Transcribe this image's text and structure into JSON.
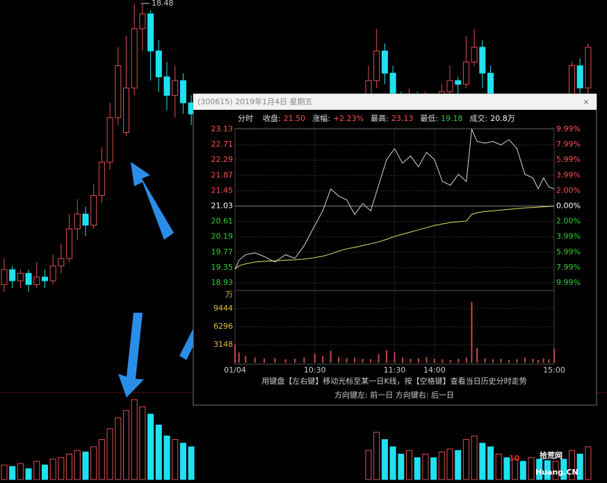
{
  "background_chart": {
    "peak_label": "18.48",
    "candles_left": [
      [
        10.9,
        11.3,
        11.6,
        10.7
      ],
      [
        11.3,
        11.0,
        11.4,
        10.8
      ],
      [
        11.0,
        11.2,
        11.3,
        10.8
      ],
      [
        11.2,
        10.9,
        11.3,
        10.7
      ],
      [
        10.9,
        11.1,
        11.5,
        10.8
      ],
      [
        11.1,
        11.0,
        11.3,
        10.8
      ],
      [
        11.0,
        11.4,
        11.7,
        10.9
      ],
      [
        11.4,
        11.6,
        12.0,
        11.2
      ],
      [
        11.6,
        12.4,
        12.8,
        11.5
      ],
      [
        12.4,
        12.8,
        13.2,
        12.1
      ],
      [
        12.8,
        12.5,
        13.0,
        12.2
      ],
      [
        12.5,
        13.3,
        13.6,
        12.4
      ],
      [
        13.3,
        14.2,
        14.6,
        13.1
      ],
      [
        14.2,
        15.4,
        15.8,
        14.0
      ],
      [
        15.4,
        16.8,
        17.3,
        15.2
      ],
      [
        15.0,
        16.2,
        17.6,
        14.9
      ],
      [
        16.2,
        17.8,
        18.48,
        16.0
      ],
      [
        17.8,
        18.2,
        18.48,
        17.2
      ],
      [
        18.2,
        17.2,
        18.3,
        16.4
      ],
      [
        17.2,
        16.5,
        17.5,
        16.1
      ],
      [
        16.5,
        16.0,
        16.9,
        15.6
      ],
      [
        16.0,
        16.4,
        16.8,
        15.4
      ],
      [
        16.4,
        15.8,
        16.6,
        15.5
      ],
      [
        15.8,
        15.5,
        16.0,
        15.2
      ]
    ],
    "candles_right": [
      [
        15.8,
        16.4,
        16.8,
        15.6
      ],
      [
        16.4,
        17.2,
        17.8,
        16.2
      ],
      [
        17.2,
        16.6,
        17.4,
        16.3
      ],
      [
        16.6,
        15.9,
        16.8,
        15.7
      ],
      [
        15.9,
        15.8,
        16.1,
        15.6
      ],
      [
        15.8,
        16.0,
        16.2,
        15.6
      ],
      [
        16.0,
        15.7,
        16.1,
        15.5
      ],
      [
        15.7,
        15.9,
        16.1,
        15.6
      ],
      [
        15.9,
        15.8,
        16.0,
        15.6
      ],
      [
        15.8,
        16.1,
        16.3,
        15.7
      ],
      [
        16.1,
        16.4,
        16.8,
        15.9
      ],
      [
        16.4,
        16.3,
        16.5,
        16.0
      ],
      [
        16.3,
        16.9,
        17.6,
        16.2
      ],
      [
        16.9,
        17.3,
        17.8,
        16.8
      ],
      [
        17.3,
        16.6,
        17.5,
        16.2
      ],
      [
        16.6,
        15.7,
        16.8,
        15.5
      ],
      [
        15.7,
        15.8,
        16.0,
        15.5
      ],
      [
        15.8,
        15.6,
        15.9,
        15.4
      ],
      [
        15.6,
        15.7,
        15.9,
        15.5
      ],
      [
        15.7,
        15.6,
        15.8,
        15.4
      ],
      [
        15.6,
        15.8,
        16.0,
        15.5
      ],
      [
        15.8,
        15.7,
        15.9,
        15.6
      ],
      [
        15.7,
        15.6,
        15.8,
        15.5
      ],
      [
        15.6,
        15.7,
        15.8,
        15.5
      ],
      [
        15.7,
        15.6,
        15.8,
        15.4
      ],
      [
        15.6,
        16.8,
        16.9,
        15.5
      ],
      [
        16.8,
        16.2,
        17.0,
        15.9
      ],
      [
        16.2,
        17.3,
        17.4,
        16.0
      ]
    ],
    "volumes_left": [
      20,
      18,
      22,
      15,
      25,
      20,
      28,
      30,
      35,
      40,
      38,
      45,
      55,
      70,
      85,
      95,
      110,
      100,
      90,
      75,
      60,
      55,
      50,
      45
    ],
    "volumes_right": [
      40,
      65,
      55,
      45,
      35,
      40,
      30,
      35,
      30,
      38,
      42,
      40,
      55,
      60,
      50,
      45,
      35,
      30,
      28,
      25,
      30,
      28,
      26,
      25,
      28,
      40,
      35,
      45
    ]
  },
  "popup": {
    "title": "(300615) 2019年1月4日 星期五",
    "close": "×",
    "mode": "分时",
    "stats": [
      {
        "label": "收盘:",
        "value": "21.50",
        "color": "#ff5050"
      },
      {
        "label": "涨幅:",
        "value": "+2.23%",
        "color": "#ff5050"
      },
      {
        "label": "最高:",
        "value": "23.13",
        "color": "#ff5050"
      },
      {
        "label": "最低:",
        "value": "19.18",
        "color": "#30d030"
      },
      {
        "label": "成交:",
        "value": "20.8万",
        "color": "#ffffff"
      }
    ],
    "chart": {
      "x": [
        0,
        3,
        8,
        15,
        22,
        30,
        38,
        45,
        52,
        60,
        66,
        72,
        78,
        84,
        90,
        96,
        102,
        108,
        114,
        120,
        126,
        132,
        138,
        144,
        150,
        156,
        162,
        168,
        174,
        178,
        182,
        188,
        194,
        200,
        206,
        212,
        218,
        224,
        228,
        232,
        236,
        240
      ],
      "price": [
        19.3,
        19.55,
        19.7,
        19.75,
        19.65,
        19.5,
        19.7,
        19.6,
        19.95,
        20.5,
        20.9,
        21.5,
        21.3,
        21.2,
        20.8,
        21.1,
        20.9,
        21.6,
        22.3,
        22.6,
        22.2,
        22.4,
        22.1,
        22.5,
        22.3,
        21.7,
        21.6,
        21.9,
        21.7,
        23.13,
        22.8,
        22.75,
        22.8,
        22.7,
        22.85,
        22.6,
        21.9,
        21.8,
        21.5,
        21.8,
        21.55,
        21.5
      ],
      "average": [
        19.3,
        19.4,
        19.45,
        19.5,
        19.52,
        19.53,
        19.55,
        19.56,
        19.58,
        19.62,
        19.66,
        19.72,
        19.8,
        19.86,
        19.9,
        19.95,
        20.0,
        20.05,
        20.12,
        20.2,
        20.26,
        20.32,
        20.38,
        20.44,
        20.5,
        20.54,
        20.58,
        20.6,
        20.62,
        20.8,
        20.85,
        20.88,
        20.9,
        20.92,
        20.94,
        20.96,
        20.98,
        20.99,
        21.0,
        21.01,
        21.02,
        21.03
      ],
      "volume": [
        3200,
        1800,
        1200,
        900,
        700,
        800,
        600,
        700,
        900,
        1600,
        1200,
        2100,
        1000,
        800,
        900,
        700,
        600,
        1500,
        2200,
        1800,
        900,
        700,
        800,
        1000,
        700,
        600,
        500,
        700,
        900,
        10600,
        2600,
        800,
        600,
        700,
        500,
        600,
        900,
        700,
        500,
        800,
        600,
        2400
      ],
      "xlim": [
        0,
        240
      ],
      "xticks": [
        {
          "value": 0,
          "label": "01/04"
        },
        {
          "value": 60,
          "label": "10:30"
        },
        {
          "value": 120,
          "label": "11:30"
        },
        {
          "value": 150,
          "label": "14:00"
        },
        {
          "value": 240,
          "label": "15:00"
        }
      ],
      "ylim": [
        18.93,
        23.13
      ],
      "yticks": [
        23.13,
        22.71,
        22.29,
        21.87,
        21.45,
        21.03,
        20.61,
        20.19,
        19.77,
        19.35,
        18.93
      ],
      "y2lim": [
        -9.99,
        9.99
      ],
      "y2ticks": [
        {
          "value": 9.99,
          "label": "9.99%"
        },
        {
          "value": 7.99,
          "label": "7.99%"
        },
        {
          "value": 5.99,
          "label": "5.99%"
        },
        {
          "value": 3.99,
          "label": "3.99%"
        },
        {
          "value": 2,
          "label": "2.00%"
        },
        {
          "value": 0,
          "label": "0.00%"
        },
        {
          "value": -2,
          "label": "2.00%"
        },
        {
          "value": -3.99,
          "label": "3.99%"
        },
        {
          "value": -5.99,
          "label": "5.99%"
        },
        {
          "value": -7.99,
          "label": "7.99%"
        },
        {
          "value": -9.99,
          "label": "9.99%"
        }
      ],
      "volume_lim": [
        0,
        12592
      ],
      "volume_ticks": [
        3148,
        6296,
        9444
      ],
      "volume_unit": "万",
      "price_color": "#d8d8d8",
      "average_color": "#e8e070",
      "volume_color": "#c84848"
    }
  },
  "footer": {
    "line1": "用键盘【左右键】移动光标至某一日K线，按【空格键】查看当日历史分时走势",
    "line2": "方向键左: 前一日    方向键右: 后一日"
  },
  "watermark": {
    "logo": "10",
    "name": "拾荒网",
    "url": "Huang.CN"
  }
}
